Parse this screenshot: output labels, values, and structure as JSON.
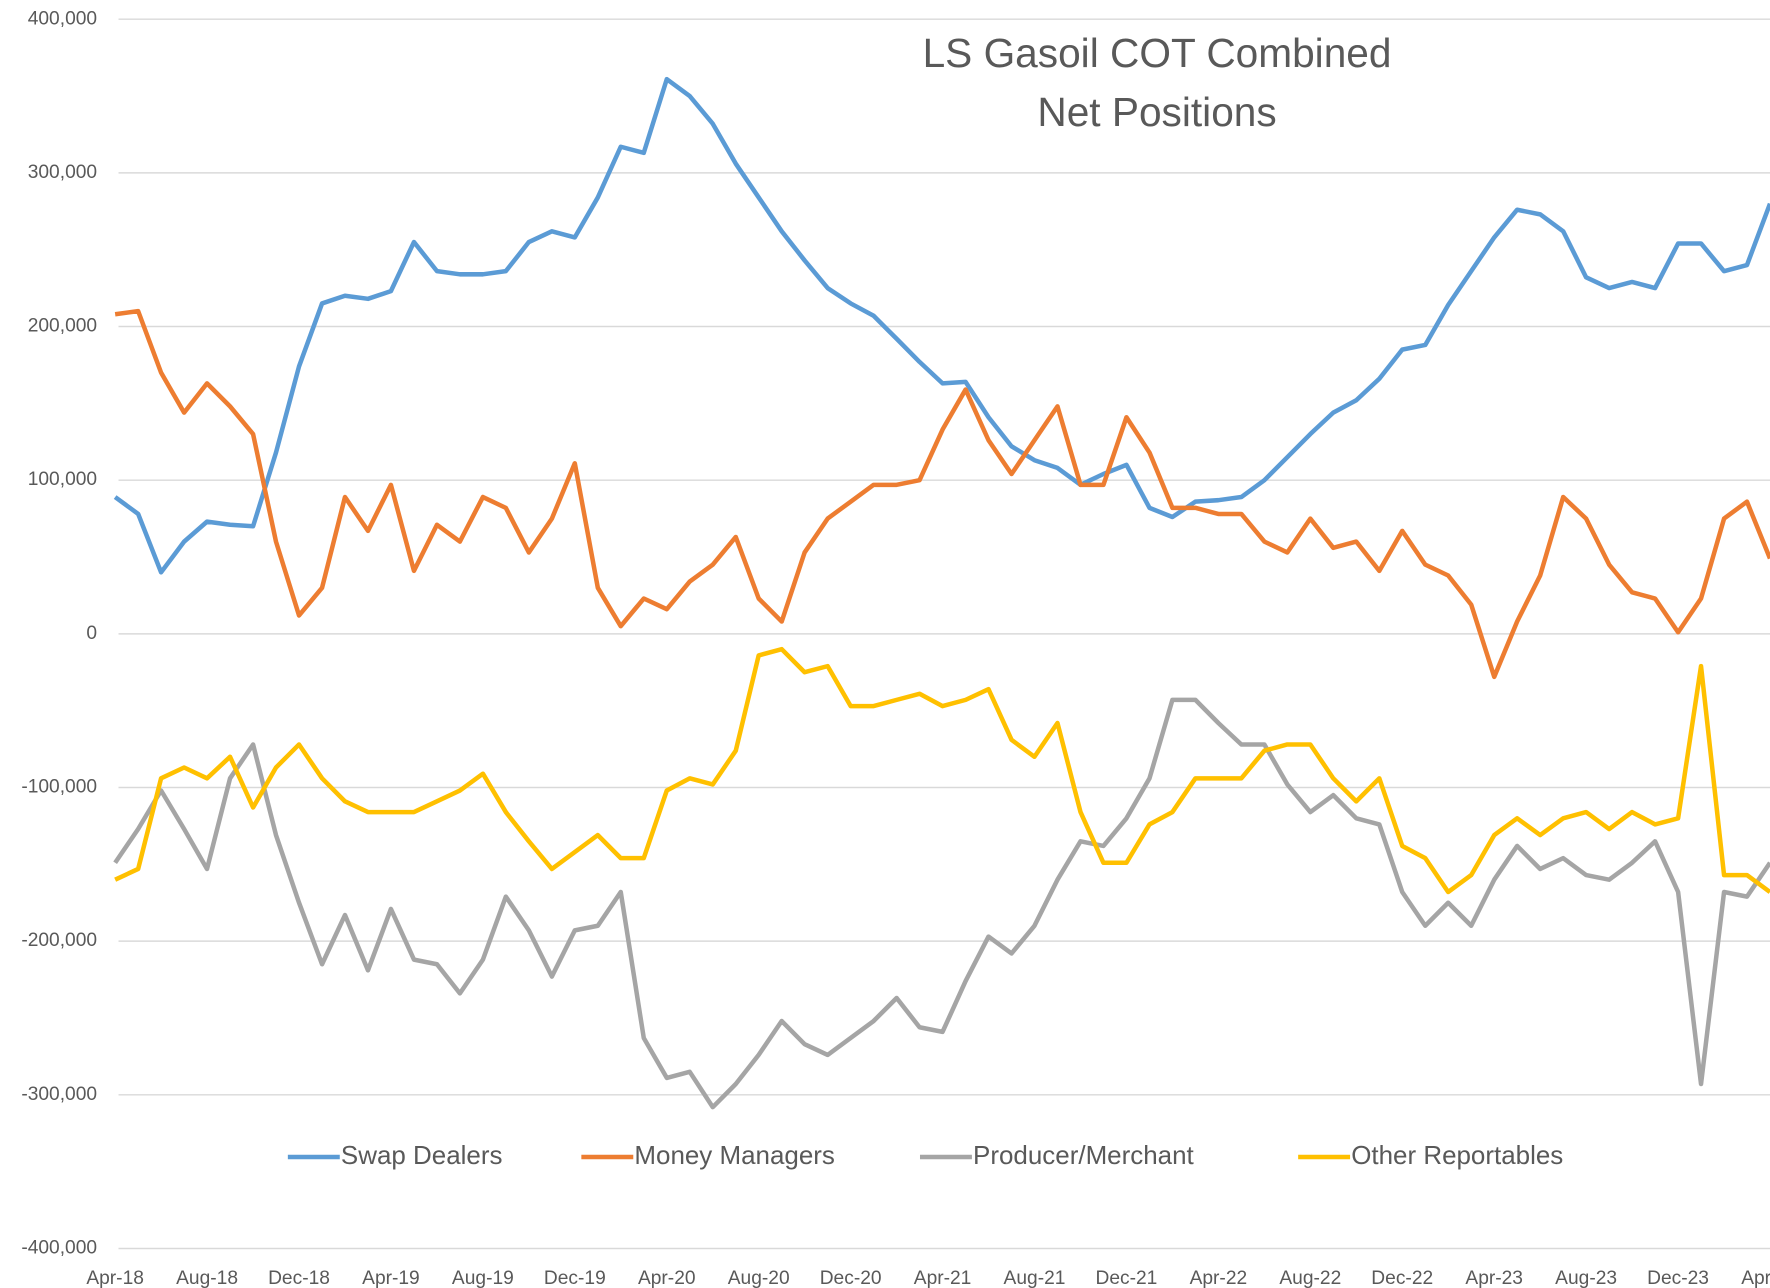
{
  "chart_data": {
    "type": "line",
    "title": [
      "LS Gasoil COT Combined",
      "Net Positions"
    ],
    "categories": [
      "Apr-18",
      null,
      null,
      null,
      "Aug-18",
      null,
      null,
      null,
      "Dec-18",
      null,
      null,
      null,
      "Apr-19",
      null,
      null,
      null,
      "Aug-19",
      null,
      null,
      null,
      "Dec-19",
      null,
      null,
      null,
      "Apr-20",
      null,
      null,
      null,
      "Aug-20",
      null,
      null,
      null,
      "Dec-20",
      null,
      null,
      null,
      "Apr-21",
      null,
      null,
      null,
      "Aug-21",
      null,
      null,
      null,
      "Dec-21",
      null,
      null,
      null,
      "Apr-22",
      null,
      null,
      null,
      "Aug-22",
      null,
      null,
      null,
      "Dec-22",
      null,
      null,
      null,
      "Apr-23",
      null,
      null,
      null,
      "Aug-23",
      null,
      null,
      null,
      "Dec-23",
      null,
      null,
      null,
      "Apr-24"
    ],
    "series": [
      {
        "name": "Swap Dealers",
        "color": "#5b9bd5",
        "values": [
          89000,
          78000,
          40000,
          60000,
          73000,
          71000,
          70000,
          118000,
          174000,
          215000,
          220000,
          218000,
          223000,
          255000,
          236000,
          234000,
          234000,
          236000,
          255000,
          262000,
          258000,
          284000,
          317000,
          313000,
          361000,
          350000,
          332000,
          306000,
          284000,
          262000,
          243000,
          225000,
          215000,
          207000,
          192000,
          177000,
          163000,
          164000,
          141000,
          122000,
          113000,
          108000,
          97000,
          104000,
          110000,
          82000,
          76000,
          86000,
          87000,
          89000,
          100000,
          115000,
          130000,
          144000,
          152000,
          166000,
          185000,
          188000,
          214000,
          236000,
          258000,
          276000,
          273000,
          262000,
          232000,
          225000,
          229000,
          225000,
          254000,
          254000,
          236000,
          240000,
          280000
        ]
      },
      {
        "name": "Money Managers",
        "color": "#ed7d31",
        "values": [
          208000,
          210000,
          170000,
          144000,
          163000,
          148000,
          130000,
          60000,
          12000,
          30000,
          89000,
          67000,
          97000,
          41000,
          71000,
          60000,
          89000,
          82000,
          53000,
          75000,
          111000,
          30000,
          5000,
          23000,
          16000,
          34000,
          45000,
          63000,
          23000,
          8000,
          53000,
          75000,
          86000,
          97000,
          97000,
          100000,
          133000,
          159000,
          126000,
          104000,
          126000,
          148000,
          97000,
          97000,
          141000,
          118000,
          82000,
          82000,
          78000,
          78000,
          60000,
          53000,
          75000,
          56000,
          60000,
          41000,
          67000,
          45000,
          38000,
          19000,
          -28000,
          8000,
          38000,
          89000,
          75000,
          45000,
          27000,
          23000,
          1000,
          23000,
          75000,
          86000,
          49000
        ]
      },
      {
        "name": "Producer/Merchant",
        "color": "#a5a5a5",
        "values": [
          -149000,
          -127000,
          -102000,
          -127000,
          -153000,
          -94000,
          -72000,
          -131000,
          -175000,
          -215000,
          -183000,
          -219000,
          -179000,
          -212000,
          -215000,
          -234000,
          -212000,
          -171000,
          -193000,
          -223000,
          -193000,
          -190000,
          -168000,
          -263000,
          -289000,
          -285000,
          -308000,
          -293000,
          -274000,
          -252000,
          -267000,
          -274000,
          -263000,
          -252000,
          -237000,
          -256000,
          -259000,
          -226000,
          -197000,
          -208000,
          -190000,
          -160000,
          -135000,
          -138000,
          -120000,
          -94000,
          -43000,
          -43000,
          -58000,
          -72000,
          -72000,
          -98000,
          -116000,
          -105000,
          -120000,
          -124000,
          -168000,
          -190000,
          -175000,
          -190000,
          -160000,
          -138000,
          -153000,
          -146000,
          -157000,
          -160000,
          -149000,
          -135000,
          -168000,
          -293000,
          -168000,
          -171000,
          -149000
        ]
      },
      {
        "name": "Other Reportables",
        "color": "#ffc000",
        "values": [
          -160000,
          -153000,
          -94000,
          -87000,
          -94000,
          -80000,
          -113000,
          -87000,
          -72000,
          -94000,
          -109000,
          -116000,
          -116000,
          -116000,
          -109000,
          -102000,
          -91000,
          -116000,
          -135000,
          -153000,
          -142000,
          -131000,
          -146000,
          -146000,
          -102000,
          -94000,
          -98000,
          -76000,
          -14000,
          -10000,
          -25000,
          -21000,
          -47000,
          -47000,
          -43000,
          -39000,
          -47000,
          -43000,
          -36000,
          -69000,
          -80000,
          -58000,
          -116000,
          -149000,
          -149000,
          -124000,
          -116000,
          -94000,
          -94000,
          -94000,
          -76000,
          -72000,
          -72000,
          -94000,
          -109000,
          -94000,
          -138000,
          -146000,
          -168000,
          -157000,
          -131000,
          -120000,
          -131000,
          -120000,
          -116000,
          -127000,
          -116000,
          -124000,
          -120000,
          -21000,
          -157000,
          -157000,
          -168000
        ]
      }
    ],
    "ylim": [
      -400000,
      400000
    ],
    "yticks": [
      {
        "value": -400000,
        "label": "-400,000"
      },
      {
        "value": -300000,
        "label": "-300,000"
      },
      {
        "value": -200000,
        "label": "-200,000"
      },
      {
        "value": -100000,
        "label": "-100,000"
      },
      0,
      {
        "value": 100000,
        "label": "100,000"
      },
      {
        "value": 200000,
        "label": "200,000"
      },
      {
        "value": 300000,
        "label": "300,000"
      },
      {
        "value": 400000,
        "label": "400,000"
      }
    ],
    "grid": true,
    "legend": "bottom"
  }
}
